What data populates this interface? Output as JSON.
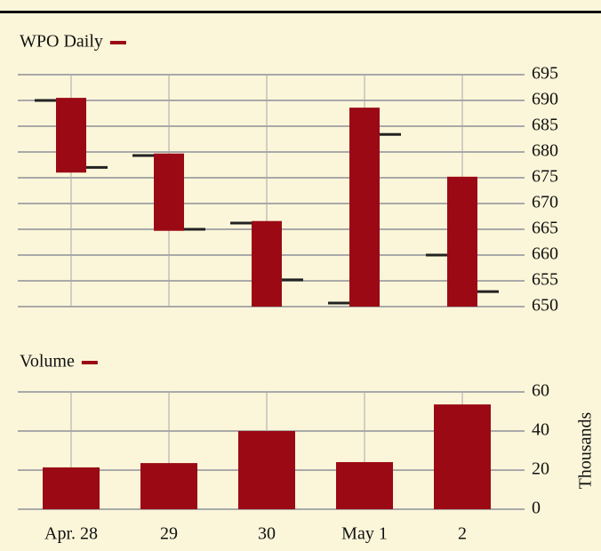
{
  "chart_data": [
    {
      "type": "ohlc",
      "series": [
        {
          "name": "WPO Daily",
          "color": "#9b0a14",
          "open": [
            690,
            679.3,
            666.2,
            650.7,
            660
          ],
          "high": [
            690.5,
            679.7,
            666.6,
            688.6,
            675.2
          ],
          "low": [
            676,
            664.7,
            650,
            650,
            650
          ],
          "close": [
            677,
            665,
            655.2,
            683.4,
            652.9
          ]
        }
      ],
      "ylim": [
        650,
        695
      ],
      "yticks": [
        650,
        655,
        660,
        665,
        670,
        675,
        680,
        685,
        690,
        695
      ],
      "grid": true
    },
    {
      "type": "bar",
      "categories": [
        "Apr. 28",
        "29",
        "30",
        "May 1",
        "2"
      ],
      "series": [
        {
          "name": "Volume",
          "color": "#9b0a14",
          "values": [
            21.4,
            23.6,
            40,
            24.1,
            53.6
          ]
        }
      ],
      "ylabel": "Thousands",
      "ylim": [
        0,
        60
      ],
      "yticks": [
        0,
        20,
        40,
        60
      ],
      "grid": true
    }
  ]
}
